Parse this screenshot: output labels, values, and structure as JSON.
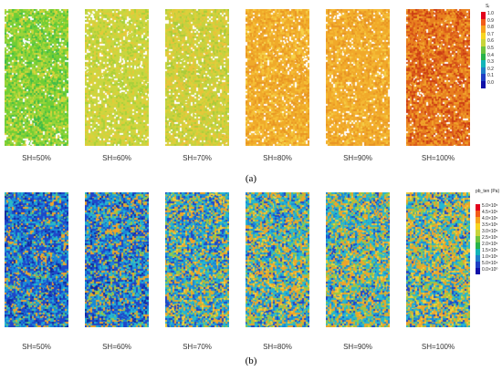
{
  "panels": [
    {
      "id": "a",
      "label": "(a)",
      "samples": [
        {
          "label": "SH=50%",
          "palette": [
            "#6fce35",
            "#9bd43a",
            "#c9d63b",
            "#e3d03a",
            "#3fbb49",
            "#ffffff"
          ],
          "weights": [
            34,
            24,
            16,
            8,
            12,
            6
          ]
        },
        {
          "label": "SH=60%",
          "palette": [
            "#c8d640",
            "#d9d23c",
            "#a7d13a",
            "#e8c83a",
            "#ffffff"
          ],
          "weights": [
            40,
            22,
            16,
            12,
            10
          ]
        },
        {
          "label": "SH=70%",
          "palette": [
            "#c6d23e",
            "#ddd03b",
            "#a9cc3a",
            "#eac23a",
            "#ffffff"
          ],
          "weights": [
            38,
            24,
            14,
            14,
            10
          ]
        },
        {
          "label": "SH=80%",
          "palette": [
            "#f0aa2a",
            "#f5be36",
            "#e99624",
            "#f6d34a",
            "#ffffff"
          ],
          "weights": [
            42,
            22,
            18,
            10,
            8
          ]
        },
        {
          "label": "SH=90%",
          "palette": [
            "#f1a92a",
            "#f4b934",
            "#e89424",
            "#f5cf48",
            "#ffffff"
          ],
          "weights": [
            44,
            22,
            18,
            8,
            8
          ]
        },
        {
          "label": "SH=100%",
          "palette": [
            "#e8801f",
            "#db5a1a",
            "#f0a32a",
            "#cc3d14",
            "#ffffff"
          ],
          "weights": [
            36,
            24,
            20,
            14,
            6
          ]
        }
      ],
      "legend": {
        "title": "Sᵣ",
        "ticks": [
          "1.0",
          "0.9",
          "0.8",
          "0.7",
          "0.6",
          "0.5",
          "0.4",
          "0.3",
          "0.2",
          "0.1",
          "0.0"
        ],
        "colors": [
          "#e3001b",
          "#f25c19",
          "#f7a21b",
          "#f7d51f",
          "#c8d43a",
          "#6cc43f",
          "#28b34a",
          "#12b4b8",
          "#1f7ec9",
          "#1f3fc4",
          "#1010a8"
        ]
      }
    },
    {
      "id": "b",
      "label": "(b)",
      "samples": [
        {
          "label": "SH=50%",
          "palette": [
            "#1f46c9",
            "#1a87d8",
            "#26b7cf",
            "#eea52a",
            "#58c07a",
            "#0f2aa0"
          ],
          "weights": [
            34,
            24,
            16,
            12,
            6,
            8
          ]
        },
        {
          "label": "SH=60%",
          "palette": [
            "#1f46c9",
            "#1a87d8",
            "#26b7cf",
            "#eea52a",
            "#93c84a",
            "#0f2aa0"
          ],
          "weights": [
            26,
            22,
            20,
            18,
            8,
            6
          ]
        },
        {
          "label": "SH=70%",
          "palette": [
            "#26b7cf",
            "#1a87d8",
            "#eea52a",
            "#1f46c9",
            "#93c84a",
            "#f1cf3c"
          ],
          "weights": [
            26,
            20,
            20,
            14,
            12,
            8
          ]
        },
        {
          "label": "SH=80%",
          "palette": [
            "#26b7cf",
            "#eea52a",
            "#1a87d8",
            "#93c84a",
            "#1f46c9",
            "#f1cf3c"
          ],
          "weights": [
            28,
            24,
            16,
            14,
            10,
            8
          ]
        },
        {
          "label": "SH=90%",
          "palette": [
            "#26b7cf",
            "#eea52a",
            "#93c84a",
            "#1a87d8",
            "#f1cf3c",
            "#1f46c9"
          ],
          "weights": [
            28,
            24,
            16,
            14,
            10,
            8
          ]
        },
        {
          "label": "SH=100%",
          "palette": [
            "#26b7cf",
            "#eea52a",
            "#93c84a",
            "#f1cf3c",
            "#1a87d8",
            "#1f46c9"
          ],
          "weights": [
            24,
            26,
            16,
            14,
            12,
            8
          ]
        }
      ],
      "legend": {
        "title": "pb_ten (Pa)",
        "ticks": [
          "5.0×10⁵",
          "4.5×10⁵",
          "4.0×10⁵",
          "3.5×10⁵",
          "3.0×10⁵",
          "2.5×10⁵",
          "2.0×10⁵",
          "1.5×10⁵",
          "1.0×10⁵",
          "5.0×10⁴",
          "0.0×10⁰"
        ],
        "colors": [
          "#e3001b",
          "#f25c19",
          "#f7a21b",
          "#f7d51f",
          "#c8d43a",
          "#6cc43f",
          "#28b34a",
          "#12b4b8",
          "#1f7ec9",
          "#1f3fc4",
          "#1010a8"
        ]
      }
    }
  ]
}
